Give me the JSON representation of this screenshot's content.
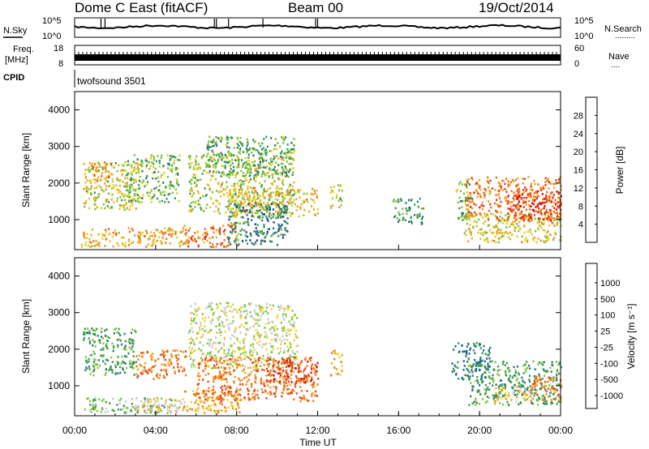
{
  "header": {
    "title": "Dome C East (fitACF)",
    "beam": "Beam 00",
    "date": "19/Oct/2014"
  },
  "strips": {
    "nsky_label": "N.Sky",
    "nsearch_label": "N.Search",
    "nsearch_dots": ".........",
    "freq_label": "Freq.",
    "freq_unit": "[MHz]",
    "nave_label": "Nave",
    "nave_dots": "....",
    "cpid_label": "CPID",
    "cpid_value": "twofsound 3501",
    "noise_left_ticks": [
      "10^5",
      "10^0"
    ],
    "noise_right_ticks": [
      "10^5",
      "10^0"
    ],
    "freq_left_ticks": [
      "18",
      "8"
    ],
    "nave_right_ticks": [
      "60",
      "0"
    ]
  },
  "chart_data": [
    {
      "type": "heatmap",
      "name": "power",
      "ylabel": "Slant Range [km]",
      "xlabel": "Time UT",
      "x_ticks": [
        "00:00",
        "04:00",
        "08:00",
        "12:00",
        "16:00",
        "20:00",
        "00:00"
      ],
      "y_ticks": [
        1000,
        2000,
        3000,
        4000
      ],
      "xlim_hours": [
        0,
        24
      ],
      "ylim_km": [
        180,
        4500
      ],
      "colorbar": {
        "label": "Power [dB]",
        "ticks": [
          4,
          8,
          12,
          16,
          20,
          24,
          28
        ],
        "range": [
          0,
          32
        ],
        "colors": [
          "#1010ee",
          "#1e3fa8",
          "#2c7a6a",
          "#3f9a52",
          "#7cc23a",
          "#d8d020",
          "#f4a020",
          "#f07018",
          "#e03a14",
          "#d81010"
        ]
      },
      "patches": [
        {
          "t0": 0.3,
          "t1": 5.4,
          "r0": 280,
          "r1": 800,
          "v": 20
        },
        {
          "t0": 5.3,
          "t1": 8.0,
          "r0": 280,
          "r1": 900,
          "v": 24
        },
        {
          "t0": 0.4,
          "t1": 3.2,
          "r0": 1300,
          "r1": 2600,
          "v": 17
        },
        {
          "t0": 0.8,
          "t1": 1.8,
          "r0": 2100,
          "r1": 2600,
          "v": 22
        },
        {
          "t0": 2.5,
          "t1": 5.2,
          "r0": 1500,
          "r1": 2800,
          "v": 13
        },
        {
          "t0": 5.6,
          "t1": 10.8,
          "r0": 1200,
          "r1": 2800,
          "v": 16
        },
        {
          "t0": 6.5,
          "t1": 10.8,
          "r0": 2200,
          "r1": 3300,
          "v": 12
        },
        {
          "t0": 7.5,
          "t1": 12.0,
          "r0": 1100,
          "r1": 1900,
          "v": 19
        },
        {
          "t0": 7.5,
          "t1": 10.5,
          "r0": 300,
          "r1": 1500,
          "v": 9
        },
        {
          "t0": 12.6,
          "t1": 13.2,
          "r0": 1300,
          "r1": 2000,
          "v": 17
        },
        {
          "t0": 18.8,
          "t1": 19.6,
          "r0": 1000,
          "r1": 2100,
          "v": 13
        },
        {
          "t0": 19.2,
          "t1": 24.0,
          "r0": 400,
          "r1": 1200,
          "v": 18
        },
        {
          "t0": 19.3,
          "t1": 24.0,
          "r0": 1000,
          "r1": 2200,
          "v": 24
        },
        {
          "t0": 21.5,
          "t1": 24.0,
          "r0": 1000,
          "r1": 1800,
          "v": 27
        },
        {
          "t0": 15.7,
          "t1": 17.2,
          "r0": 900,
          "r1": 1600,
          "v": 11
        }
      ]
    },
    {
      "type": "heatmap",
      "name": "velocity",
      "ylabel": "Slant Range [km]",
      "xlabel": "Time UT",
      "x_ticks": [
        "00:00",
        "04:00",
        "08:00",
        "12:00",
        "16:00",
        "20:00",
        "00:00"
      ],
      "y_ticks": [
        1000,
        2000,
        3000,
        4000
      ],
      "xlim_hours": [
        0,
        24
      ],
      "ylim_km": [
        180,
        4500
      ],
      "colorbar": {
        "label": "Velocity [m s⁻¹]",
        "ticks": [
          "1000",
          "500",
          "100",
          "25",
          "-25",
          "-100",
          "-500",
          "-1000"
        ],
        "colors": [
          "#1a2fb8",
          "#1d5fa0",
          "#2a7a70",
          "#3f9a52",
          "#7cc83a",
          "#c8c8c8",
          "#f4d030",
          "#f0a020",
          "#f07818",
          "#e04418",
          "#d81010"
        ]
      },
      "patches": [
        {
          "t0": 0.3,
          "t1": 5.4,
          "r0": 280,
          "r1": 700,
          "v": 4
        },
        {
          "t0": 3.0,
          "t1": 5.4,
          "r0": 300,
          "r1": 700,
          "v": 6
        },
        {
          "t0": 5.3,
          "t1": 8.2,
          "r0": 280,
          "r1": 900,
          "v": 7
        },
        {
          "t0": 0.4,
          "t1": 3.0,
          "r0": 1300,
          "r1": 2600,
          "v": 3
        },
        {
          "t0": 3.0,
          "t1": 5.5,
          "r0": 1200,
          "r1": 2000,
          "v": 8
        },
        {
          "t0": 5.6,
          "t1": 11.0,
          "r0": 1500,
          "r1": 3300,
          "v": 5
        },
        {
          "t0": 6.0,
          "t1": 12.0,
          "r0": 600,
          "r1": 1800,
          "v": 8
        },
        {
          "t0": 9.5,
          "t1": 12.0,
          "r0": 1100,
          "r1": 1800,
          "v": 9
        },
        {
          "t0": 12.6,
          "t1": 13.2,
          "r0": 1300,
          "r1": 2000,
          "v": 7
        },
        {
          "t0": 18.6,
          "t1": 20.5,
          "r0": 1200,
          "r1": 2200,
          "v": 2
        },
        {
          "t0": 19.4,
          "t1": 24.0,
          "r0": 500,
          "r1": 1700,
          "v": 3
        },
        {
          "t0": 20.5,
          "t1": 22.5,
          "r0": 600,
          "r1": 1000,
          "v": 6
        },
        {
          "t0": 22.5,
          "t1": 24.0,
          "r0": 600,
          "r1": 1300,
          "v": 8
        }
      ]
    }
  ]
}
